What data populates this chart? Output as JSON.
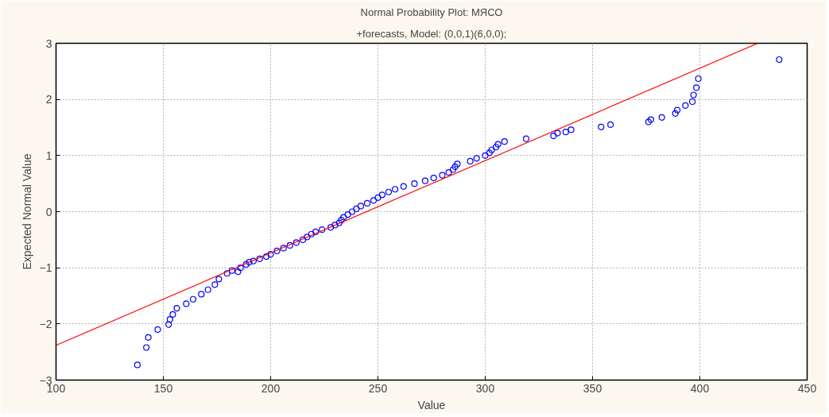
{
  "chart_data": {
    "type": "scatter",
    "title": "Normal Probability Plot: МЯСО",
    "subtitle": "+forecasts, Model: (0,0,1)(6,0,0);",
    "xlabel": "Value",
    "ylabel": "Expected Normal Value",
    "xlim": [
      100,
      450
    ],
    "ylim": [
      -3,
      3
    ],
    "xticks": [
      100,
      150,
      200,
      250,
      300,
      350,
      400,
      450
    ],
    "yticks": [
      -3,
      -2,
      -1,
      0,
      1,
      2,
      3
    ],
    "grid": true,
    "series": [
      {
        "marker": "circle",
        "color": "#0000ff",
        "x": [
          137.9,
          142.1,
          143,
          147.4,
          152.5,
          153.1,
          154.4,
          156.3,
          160.7,
          163.9,
          167.7,
          170.8,
          174,
          175.9,
          179.7,
          182,
          184.8,
          186,
          188.6,
          190,
          192,
          194.9,
          198,
          200,
          203,
          206,
          209,
          212,
          215,
          217,
          219,
          221,
          224,
          228,
          230,
          232,
          233,
          234,
          236,
          238,
          240,
          242,
          245,
          248,
          250,
          252,
          255,
          258,
          262,
          267,
          272,
          276,
          280,
          283,
          285,
          286,
          287,
          293,
          296,
          300,
          302,
          303,
          305,
          306,
          309,
          319.1,
          331.8,
          333.7,
          337.5,
          340,
          354,
          358.4,
          376.1,
          377.2,
          382.3,
          388.6,
          389.5,
          393.3,
          396.5,
          397.1,
          398.4,
          399.3,
          437
        ],
        "values": [
          -2.73,
          -2.42,
          -2.24,
          -2.1,
          -2.01,
          -1.92,
          -1.83,
          -1.72,
          -1.64,
          -1.56,
          -1.47,
          -1.39,
          -1.3,
          -1.2,
          -1.1,
          -1.05,
          -1.07,
          -1.0,
          -0.94,
          -0.9,
          -0.88,
          -0.84,
          -0.8,
          -0.76,
          -0.7,
          -0.65,
          -0.6,
          -0.55,
          -0.5,
          -0.45,
          -0.4,
          -0.36,
          -0.32,
          -0.28,
          -0.24,
          -0.2,
          -0.15,
          -0.1,
          -0.05,
          0.0,
          0.05,
          0.1,
          0.15,
          0.2,
          0.25,
          0.3,
          0.35,
          0.4,
          0.45,
          0.5,
          0.55,
          0.6,
          0.65,
          0.7,
          0.75,
          0.8,
          0.85,
          0.9,
          0.95,
          1.0,
          1.05,
          1.1,
          1.15,
          1.2,
          1.25,
          1.3,
          1.35,
          1.4,
          1.42,
          1.46,
          1.51,
          1.55,
          1.6,
          1.64,
          1.68,
          1.75,
          1.81,
          1.89,
          1.96,
          2.08,
          2.21,
          2.37,
          2.71
        ]
      },
      {
        "type": "line",
        "marker": "none",
        "color": "#ff0000",
        "x": [
          100,
          427
        ],
        "values": [
          -2.38,
          3.0
        ]
      }
    ]
  }
}
